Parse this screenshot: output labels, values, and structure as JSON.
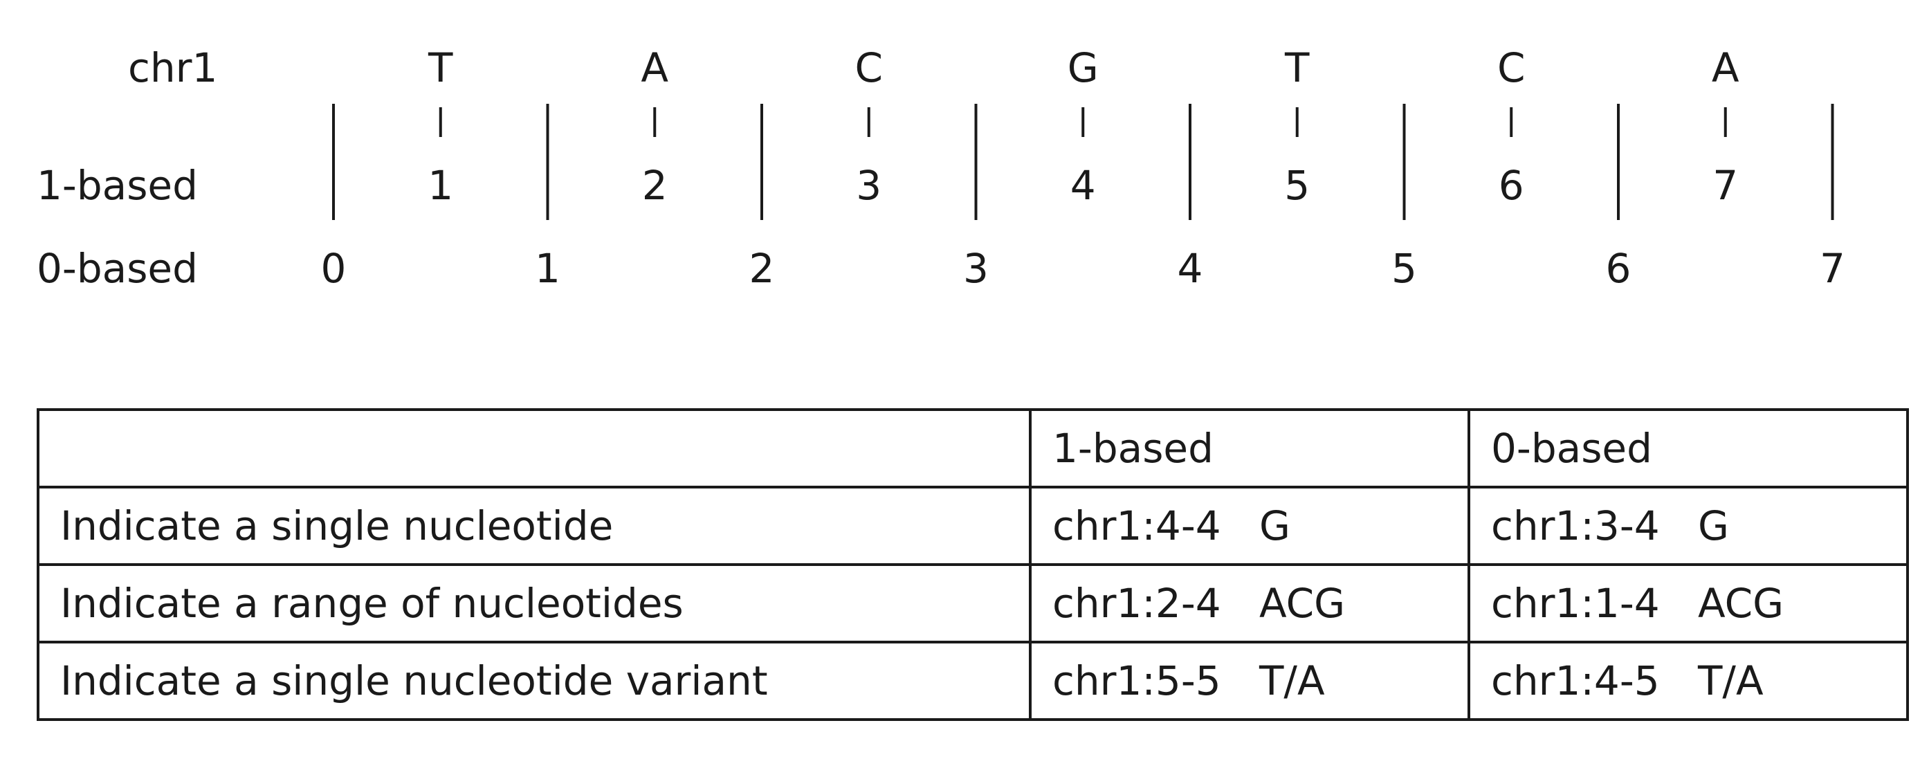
{
  "diagram": {
    "sequence_label": "chr1",
    "bases": [
      "T",
      "A",
      "C",
      "G",
      "T",
      "C",
      "A"
    ],
    "one_based_label": "1-based",
    "one_based_positions": [
      "1",
      "2",
      "3",
      "4",
      "5",
      "6",
      "7"
    ],
    "zero_based_label": "0-based",
    "zero_based_positions": [
      "0",
      "1",
      "2",
      "3",
      "4",
      "5",
      "6",
      "7"
    ]
  },
  "table": {
    "headers": [
      "",
      "1-based",
      "0-based"
    ],
    "rows": [
      [
        "Indicate a single nucleotide",
        "chr1:4-4   G",
        "chr1:3-4   G"
      ],
      [
        "Indicate a range of nucleotides",
        "chr1:2-4   ACG",
        "chr1:1-4   ACG"
      ],
      [
        "Indicate a single nucleotide variant",
        "chr1:5-5   T/A",
        "chr1:4-5   T/A"
      ]
    ]
  }
}
